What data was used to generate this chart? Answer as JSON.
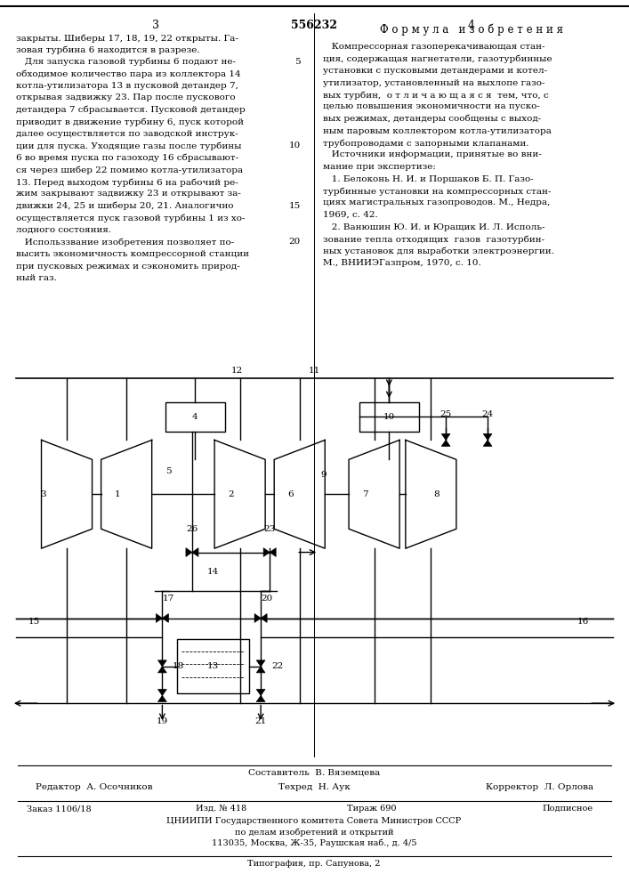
{
  "patent_number": "556232",
  "page_left_num": "3",
  "page_right_num": "4",
  "bg_color": "#ffffff",
  "text_color": "#000000",
  "formula_title": "Ф о р м у л а   и з о б р е т е н и я",
  "footer_compiler": "Составитель  В. Вяземцева",
  "footer_editor": "Редактор  А. Осочников",
  "footer_techred": "Техред  Н. Аук",
  "footer_corrector": "Корректор  Л. Орлова",
  "footer_order": "Заказ 1106/18",
  "footer_pub": "Изд. № 418",
  "footer_tirazh": "Тираж 690",
  "footer_podpisnoe": "Подписное",
  "footer_cniip1": "ЦНИИПИ Государственного комитета Совета Министров СССР",
  "footer_cniip2": "по делам изобретений и открытий",
  "footer_cniip3": "113035, Москва, Ж-35, Раушская наб., д. 4/5",
  "footer_tipog": "Типография, пр. Сапунова, 2"
}
